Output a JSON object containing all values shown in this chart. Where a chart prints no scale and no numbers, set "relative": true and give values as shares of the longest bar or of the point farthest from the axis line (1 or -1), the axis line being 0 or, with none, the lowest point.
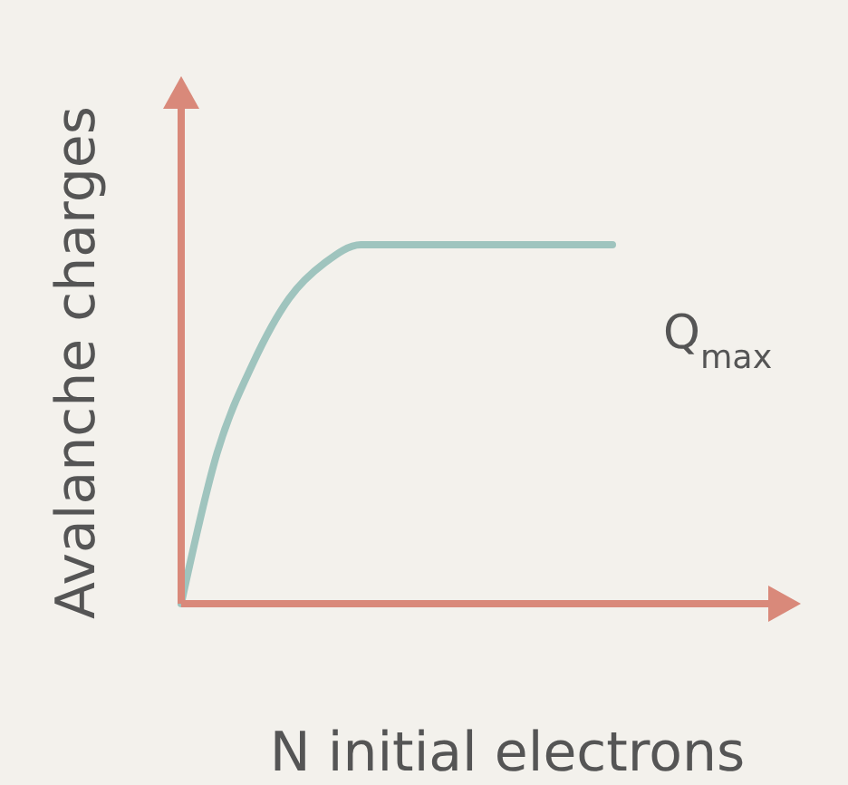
{
  "chart_data": {
    "type": "line",
    "relative": true,
    "xlabel": "N initial electrons",
    "ylabel": "Avalanche charges",
    "categories": [
      null,
      null,
      null,
      null,
      null,
      null,
      null,
      null,
      null,
      null,
      null,
      null,
      null
    ],
    "series": [
      {
        "color": "#9fc4be",
        "values": [
          0,
          0.42,
          0.67,
          0.85,
          0.95,
          1,
          1,
          1,
          1,
          1,
          1,
          1,
          1
        ]
      }
    ],
    "annotations": [
      "Q$_{max}$"
    ]
  }
}
